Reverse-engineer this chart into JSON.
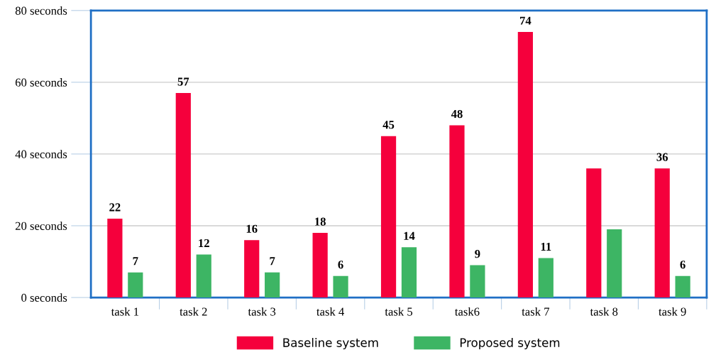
{
  "chart_data": {
    "type": "bar",
    "categories": [
      "task 1",
      "task 2",
      "task 3",
      "task 4",
      "task 5",
      "task6",
      "task 7",
      "task 8",
      "task 9"
    ],
    "series": [
      {
        "name": "Baseline system",
        "color": "#f5003c",
        "values": [
          22,
          57,
          16,
          18,
          45,
          48,
          74,
          36,
          36
        ],
        "value_labels": [
          "22",
          "57",
          "16",
          "18",
          "45",
          "48",
          "74",
          null,
          "36"
        ]
      },
      {
        "name": "Proposed system",
        "color": "#3db564",
        "values": [
          7,
          12,
          7,
          6,
          14,
          9,
          11,
          19,
          6
        ],
        "value_labels": [
          "7",
          "12",
          "7",
          "6",
          "14",
          "9",
          "11",
          null,
          "6"
        ]
      }
    ],
    "ylim": [
      0,
      80
    ],
    "yticks": [
      {
        "value": 0,
        "label": "0 seconds"
      },
      {
        "value": 20,
        "label": "20 seconds"
      },
      {
        "value": 40,
        "label": "40 seconds"
      },
      {
        "value": 60,
        "label": "60 seconds"
      },
      {
        "value": 80,
        "label": "80 seconds"
      }
    ],
    "grid": "y",
    "legend": "bottom"
  }
}
